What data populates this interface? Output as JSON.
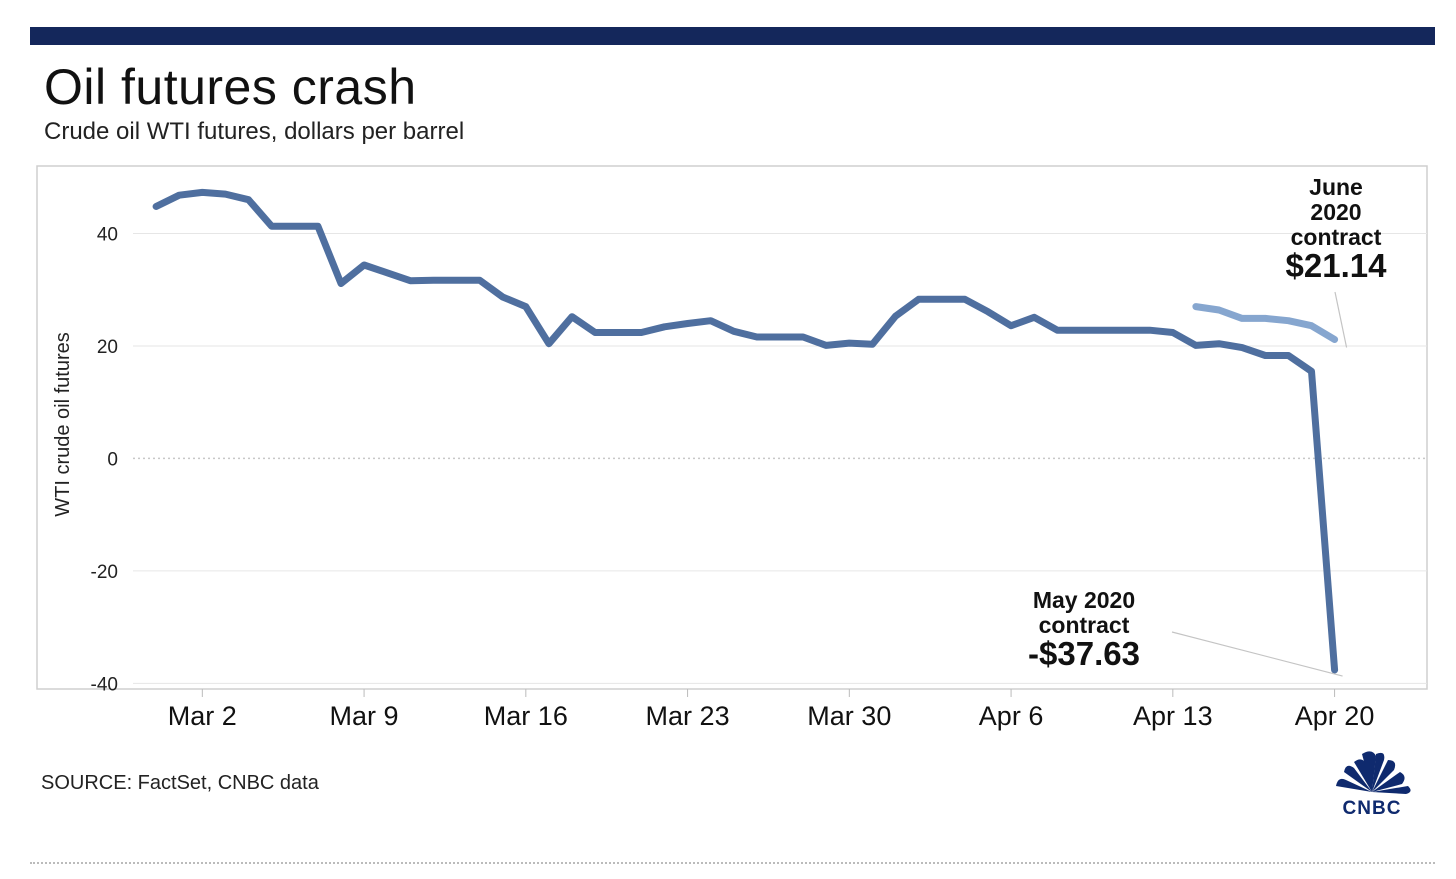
{
  "header": {
    "title": "Oil futures crash",
    "subtitle": "Crude oil WTI futures, dollars per barrel"
  },
  "footer": {
    "source": "SOURCE: FactSet, CNBC data",
    "logo_text": "CNBC"
  },
  "colors": {
    "top_bar": "#14275b",
    "may_line": "#4f6f9f",
    "june_line": "#86a6cf",
    "grid": "#e6e6e6",
    "zero_line": "#c8c8c8",
    "frame": "#cfcfcf"
  },
  "chart_data": {
    "type": "line",
    "title": "Oil futures crash",
    "subtitle": "Crude oil WTI futures, dollars per barrel",
    "ylabel": "WTI crude oil futures",
    "xlabel": "",
    "ylim": [
      -41,
      52
    ],
    "xlim": [
      "2020-02-28",
      "2020-04-24"
    ],
    "grid": true,
    "y_ticks": [
      40,
      20,
      0,
      -20,
      -40
    ],
    "y_tick_labels": [
      "40",
      "20",
      "0",
      "-20",
      "-40"
    ],
    "x_ticks": [
      "2020-03-02",
      "2020-03-09",
      "2020-03-16",
      "2020-03-23",
      "2020-03-30",
      "2020-04-06",
      "2020-04-13",
      "2020-04-20"
    ],
    "x_tick_labels": [
      "Mar 2",
      "Mar 9",
      "Mar 16",
      "Mar 23",
      "Mar 30",
      "Apr 6",
      "Apr 13",
      "Apr 20"
    ],
    "series": [
      {
        "name": "May 2020 contract",
        "color": "#4f6f9f",
        "x": [
          "2020-02-29",
          "2020-03-01",
          "2020-03-02",
          "2020-03-03",
          "2020-03-04",
          "2020-03-05",
          "2020-03-06",
          "2020-03-07",
          "2020-03-08",
          "2020-03-09",
          "2020-03-10",
          "2020-03-11",
          "2020-03-12",
          "2020-03-13",
          "2020-03-14",
          "2020-03-15",
          "2020-03-16",
          "2020-03-17",
          "2020-03-18",
          "2020-03-19",
          "2020-03-20",
          "2020-03-21",
          "2020-03-22",
          "2020-03-23",
          "2020-03-24",
          "2020-03-25",
          "2020-03-26",
          "2020-03-27",
          "2020-03-28",
          "2020-03-29",
          "2020-03-30",
          "2020-03-31",
          "2020-04-01",
          "2020-04-02",
          "2020-04-03",
          "2020-04-04",
          "2020-04-05",
          "2020-04-06",
          "2020-04-07",
          "2020-04-08",
          "2020-04-09",
          "2020-04-10",
          "2020-04-11",
          "2020-04-12",
          "2020-04-13",
          "2020-04-14",
          "2020-04-15",
          "2020-04-16",
          "2020-04-17",
          "2020-04-18",
          "2020-04-19",
          "2020-04-20"
        ],
        "values": [
          44.8,
          46.8,
          47.3,
          47.0,
          46.0,
          41.3,
          41.3,
          41.3,
          31.1,
          34.4,
          33.0,
          31.6,
          31.7,
          31.7,
          31.7,
          28.7,
          27.0,
          20.4,
          25.2,
          22.4,
          22.4,
          22.4,
          23.4,
          24.0,
          24.5,
          22.6,
          21.6,
          21.6,
          21.6,
          20.1,
          20.5,
          20.3,
          25.3,
          28.3,
          28.3,
          28.3,
          26.1,
          23.6,
          25.1,
          22.8,
          22.8,
          22.8,
          22.8,
          22.8,
          22.4,
          20.1,
          20.4,
          19.7,
          18.3,
          18.3,
          15.5,
          -37.63
        ],
        "label": "May 2020\ncontract",
        "value_label": "-$37.63"
      },
      {
        "name": "June 2020 contract",
        "color": "#86a6cf",
        "x": [
          "2020-04-14",
          "2020-04-15",
          "2020-04-16",
          "2020-04-17",
          "2020-04-18",
          "2020-04-19",
          "2020-04-20"
        ],
        "values": [
          27.0,
          26.4,
          24.9,
          24.9,
          24.5,
          23.6,
          21.14
        ],
        "label": "June\n2020\ncontract",
        "value_label": "$21.14"
      }
    ],
    "annotations": [
      {
        "target": "June 2020 contract",
        "lines": [
          "June",
          "2020",
          "contract"
        ],
        "value": "$21.14"
      },
      {
        "target": "May 2020 contract",
        "lines": [
          "May 2020",
          "contract"
        ],
        "value": "-$37.63"
      }
    ]
  }
}
